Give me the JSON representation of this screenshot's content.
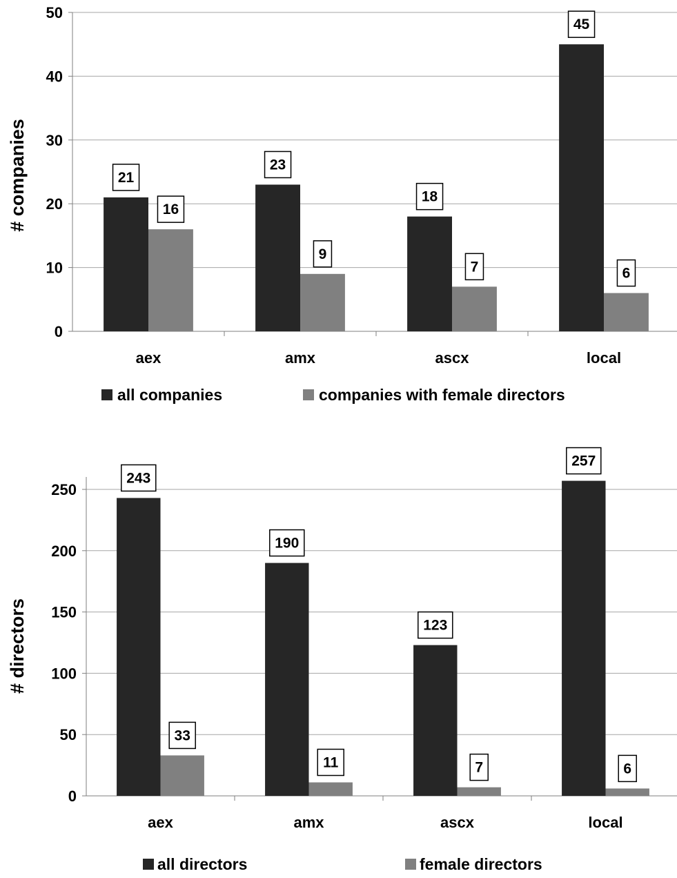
{
  "colors": {
    "dark": "#262626",
    "gray": "#808080",
    "grid": "#a6a6a6",
    "axis": "#7f7f7f"
  },
  "chart_data": [
    {
      "type": "bar",
      "categories": [
        "aex",
        "amx",
        "ascx",
        "local"
      ],
      "series": [
        {
          "name": "all companies",
          "values": [
            21,
            23,
            18,
            45
          ]
        },
        {
          "name": "companies with female directors",
          "values": [
            16,
            9,
            7,
            6
          ]
        }
      ],
      "ylabel": "# companies",
      "ylim": [
        0,
        50
      ],
      "yticks": [
        0,
        10,
        20,
        30,
        40,
        50
      ],
      "grid": true,
      "legend": "bottom",
      "data_labels": true
    },
    {
      "type": "bar",
      "categories": [
        "aex",
        "amx",
        "ascx",
        "local"
      ],
      "series": [
        {
          "name": "all directors",
          "values": [
            243,
            190,
            123,
            257
          ]
        },
        {
          "name": "female directors",
          "values": [
            33,
            11,
            7,
            6
          ]
        }
      ],
      "ylabel": "# directors",
      "ylim": [
        0,
        260
      ],
      "yticks": [
        0,
        50,
        100,
        150,
        200,
        250
      ],
      "grid": true,
      "legend": "bottom",
      "data_labels": true
    }
  ]
}
